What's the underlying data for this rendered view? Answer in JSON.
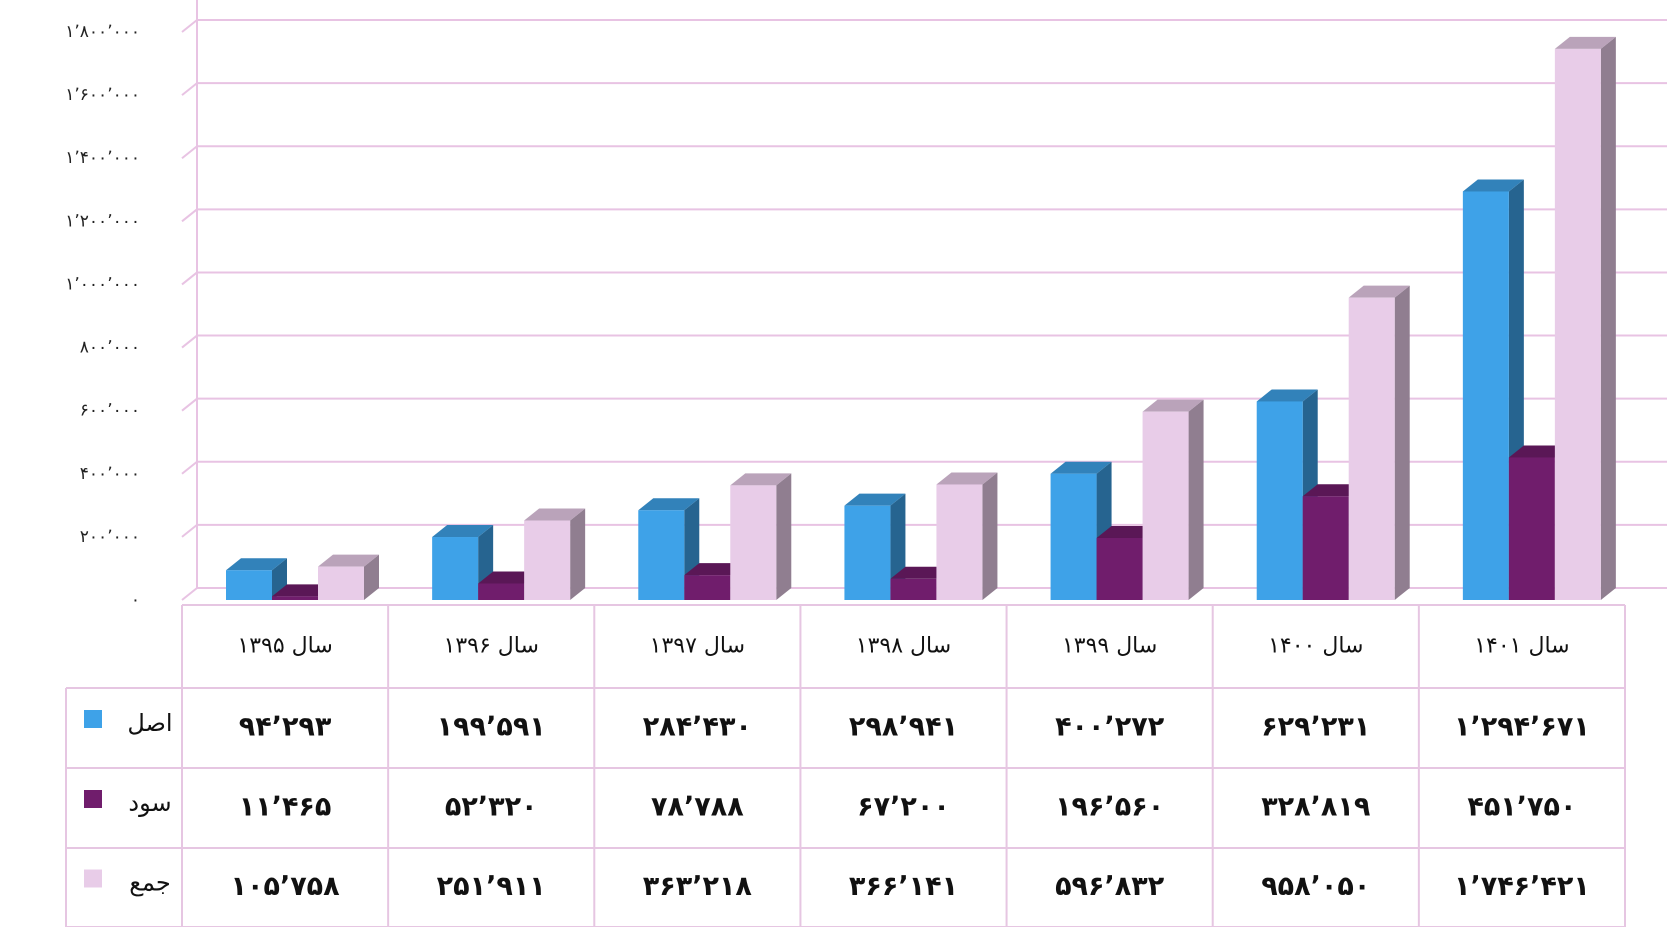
{
  "chart_data": {
    "type": "bar3d",
    "categories": [
      "سال ۱۳۹۵",
      "سال ۱۳۹۶",
      "سال ۱۳۹۷",
      "سال ۱۳۹۸",
      "سال ۱۳۹۹",
      "سال ۱۴۰۰",
      "سال ۱۴۰۱"
    ],
    "series": [
      {
        "name": "اصل",
        "color": "#3ea2e8",
        "values": [
          94293,
          199591,
          284430,
          298941,
          400272,
          629231,
          1294671
        ],
        "value_labels": [
          "۹۴٬۲۹۳",
          "۱۹۹٬۵۹۱",
          "۲۸۴٬۴۳۰",
          "۲۹۸٬۹۴۱",
          "۴۰۰٬۲۷۲",
          "۶۲۹٬۲۳۱",
          "۱٬۲۹۴٬۶۷۱"
        ]
      },
      {
        "name": "سود",
        "color": "#701d6c",
        "values": [
          11465,
          52320,
          78788,
          67200,
          196560,
          328819,
          451750
        ],
        "value_labels": [
          "۱۱٬۴۶۵",
          "۵۲٬۳۲۰",
          "۷۸٬۷۸۸",
          "۶۷٬۲۰۰",
          "۱۹۶٬۵۶۰",
          "۳۲۸٬۸۱۹",
          "۴۵۱٬۷۵۰"
        ]
      },
      {
        "name": "جمع",
        "color": "#e8cce8",
        "values": [
          105758,
          251911,
          363218,
          366141,
          596832,
          958050,
          1746421
        ],
        "value_labels": [
          "۱۰۵٬۷۵۸",
          "۲۵۱٬۹۱۱",
          "۳۶۳٬۲۱۸",
          "۳۶۶٬۱۴۱",
          "۵۹۶٬۸۳۲",
          "۹۵۸٬۰۵۰",
          "۱٬۷۴۶٬۴۲۱"
        ]
      }
    ],
    "ylim": [
      0,
      1800000
    ],
    "yticks": [
      {
        "value": 0,
        "label": "۰"
      },
      {
        "value": 200000,
        "label": "۲۰۰٬۰۰۰"
      },
      {
        "value": 400000,
        "label": "۴۰۰٬۰۰۰"
      },
      {
        "value": 600000,
        "label": "۶۰۰٬۰۰۰"
      },
      {
        "value": 800000,
        "label": "۸۰۰٬۰۰۰"
      },
      {
        "value": 1000000,
        "label": "۱٬۰۰۰٬۰۰۰"
      },
      {
        "value": 1200000,
        "label": "۱٬۲۰۰٬۰۰۰"
      },
      {
        "value": 1400000,
        "label": "۱٬۴۰۰٬۰۰۰"
      },
      {
        "value": 1600000,
        "label": "۱٬۶۰۰٬۰۰۰"
      },
      {
        "value": 1800000,
        "label": "۱٬۸۰۰٬۰۰۰"
      }
    ],
    "grid": true
  }
}
